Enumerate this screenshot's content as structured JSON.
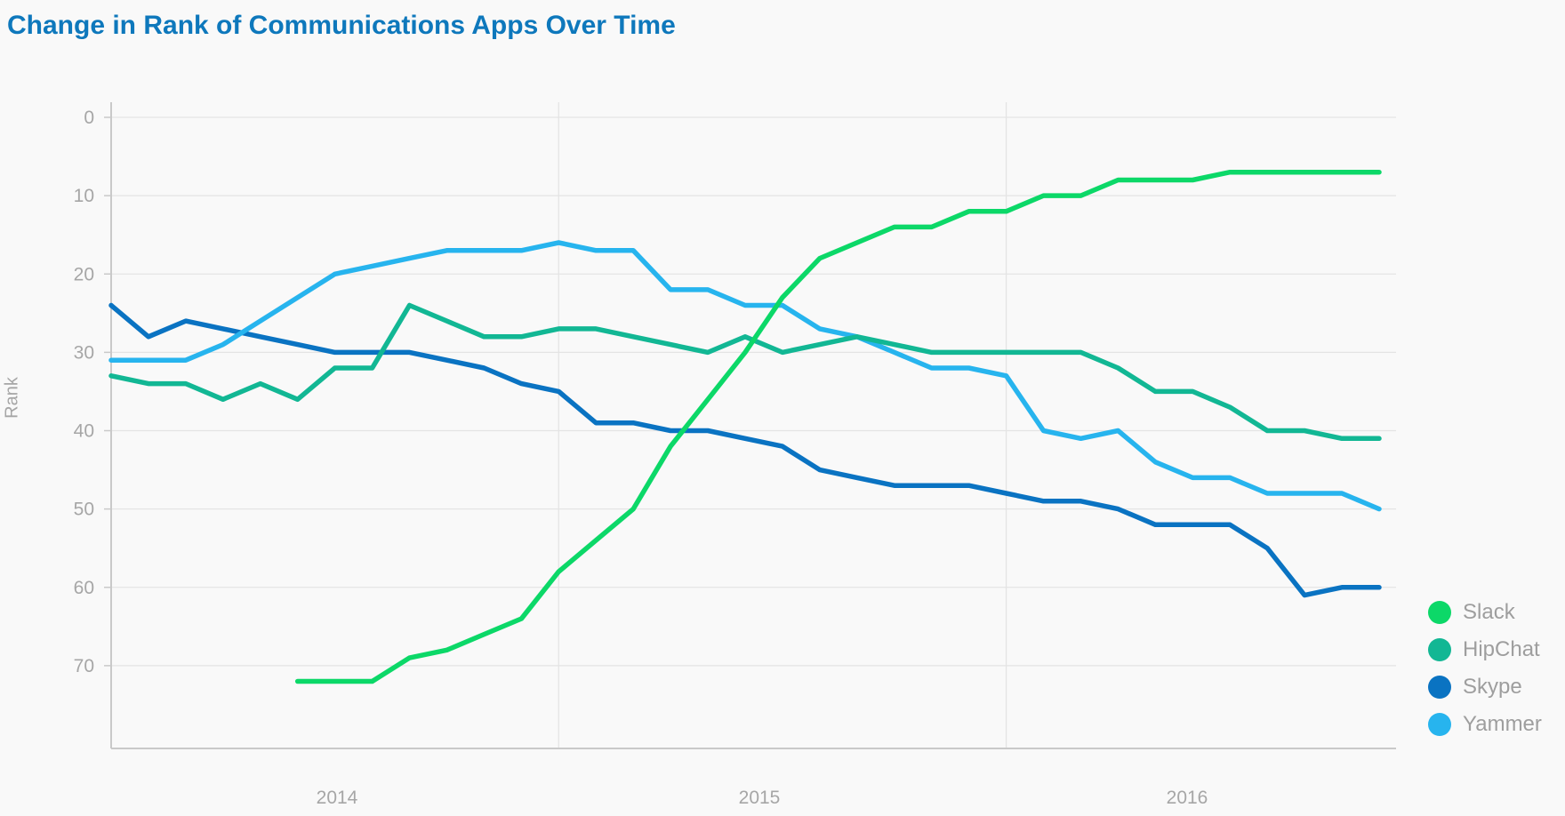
{
  "title": "Change in Rank of Communications Apps Over Time",
  "y_axis": {
    "label": "Rank",
    "ticks": [
      0,
      10,
      20,
      30,
      40,
      50,
      60,
      70
    ]
  },
  "x_axis": {
    "ticks": [
      "2014",
      "2015",
      "2016"
    ]
  },
  "legend": [
    {
      "label": "Slack",
      "color": "#0CD868"
    },
    {
      "label": "HipChat",
      "color": "#12B794"
    },
    {
      "label": "Skype",
      "color": "#0A73C2"
    },
    {
      "label": "Yammer",
      "color": "#27B4EE"
    }
  ],
  "colors": {
    "title": "#0E78BC",
    "tick_text": "#A6A6A6",
    "legend_text": "#9E9E9E",
    "gridline": "#E4E4E4",
    "axis_line": "#C9C9C9",
    "background": "#F9F9F9"
  },
  "chart_data": {
    "type": "line",
    "title": "Change in Rank of Communications Apps Over Time",
    "xlabel": "",
    "ylabel": "Rank",
    "ylim": [
      0,
      80
    ],
    "y_inverted": true,
    "grid": true,
    "legend_position": "right-bottom",
    "x": [
      "2014-01",
      "2014-02",
      "2014-03",
      "2014-04",
      "2014-05",
      "2014-06",
      "2014-07",
      "2014-08",
      "2014-09",
      "2014-10",
      "2014-11",
      "2014-12",
      "2015-01",
      "2015-02",
      "2015-03",
      "2015-04",
      "2015-05",
      "2015-06",
      "2015-07",
      "2015-08",
      "2015-09",
      "2015-10",
      "2015-11",
      "2015-12",
      "2016-01",
      "2016-02",
      "2016-03",
      "2016-04",
      "2016-05",
      "2016-06",
      "2016-07",
      "2016-08",
      "2016-09",
      "2016-10",
      "2016-11"
    ],
    "series": [
      {
        "name": "Slack",
        "color": "#0CD868",
        "values": [
          null,
          null,
          null,
          null,
          null,
          72,
          72,
          72,
          69,
          68,
          66,
          64,
          58,
          54,
          50,
          42,
          36,
          30,
          23,
          18,
          16,
          14,
          14,
          12,
          12,
          10,
          10,
          8,
          8,
          8,
          7,
          7,
          7,
          7,
          7
        ]
      },
      {
        "name": "HipChat",
        "color": "#12B794",
        "values": [
          33,
          34,
          34,
          36,
          34,
          36,
          32,
          32,
          24,
          26,
          28,
          28,
          27,
          27,
          28,
          29,
          30,
          28,
          30,
          29,
          28,
          29,
          30,
          30,
          30,
          30,
          30,
          32,
          35,
          35,
          37,
          40,
          40,
          41,
          41
        ]
      },
      {
        "name": "Skype",
        "color": "#0A73C2",
        "values": [
          24,
          28,
          26,
          27,
          28,
          29,
          30,
          30,
          30,
          31,
          32,
          34,
          35,
          39,
          39,
          40,
          40,
          41,
          42,
          45,
          46,
          47,
          47,
          47,
          48,
          49,
          49,
          50,
          52,
          52,
          52,
          55,
          61,
          60,
          60
        ]
      },
      {
        "name": "Yammer",
        "color": "#27B4EE",
        "values": [
          31,
          31,
          31,
          29,
          26,
          23,
          20,
          19,
          18,
          17,
          17,
          17,
          16,
          17,
          17,
          22,
          22,
          24,
          24,
          27,
          28,
          30,
          32,
          32,
          33,
          40,
          41,
          40,
          44,
          46,
          46,
          48,
          48,
          48,
          50
        ]
      }
    ]
  }
}
